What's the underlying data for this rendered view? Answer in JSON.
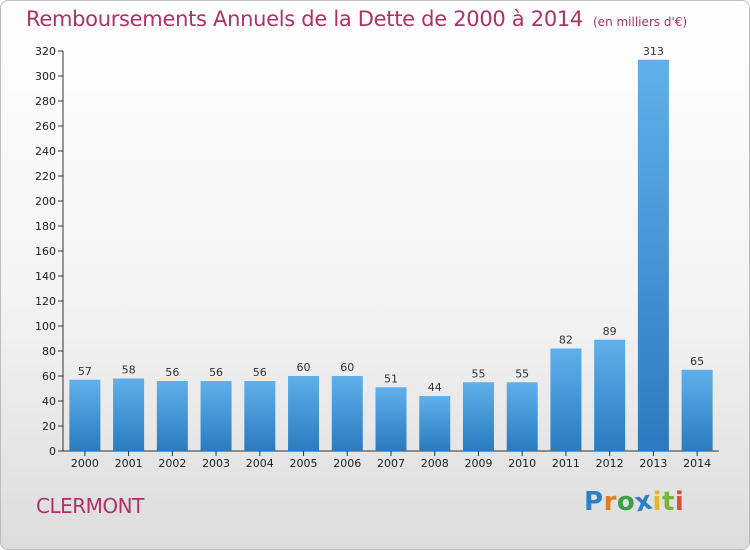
{
  "chart_data": {
    "type": "bar",
    "title": "Remboursements Annuels de la Dette de 2000 à 2014",
    "subtitle": "(en milliers d'€)",
    "xlabel": "",
    "ylabel": "",
    "categories": [
      "2000",
      "2001",
      "2002",
      "2003",
      "2004",
      "2005",
      "2006",
      "2007",
      "2008",
      "2009",
      "2010",
      "2011",
      "2012",
      "2013",
      "2014"
    ],
    "values": [
      57,
      58,
      56,
      56,
      56,
      60,
      60,
      51,
      44,
      55,
      55,
      82,
      89,
      313,
      65
    ],
    "ylim": [
      0,
      320
    ],
    "yticks": [
      0,
      20,
      40,
      60,
      80,
      100,
      120,
      140,
      160,
      180,
      200,
      220,
      240,
      260,
      280,
      300,
      320
    ],
    "grid": false,
    "legend": "none"
  },
  "colors": {
    "bar_top": "#5fb0ea",
    "bar_bottom": "#2a7bbf",
    "title": "#b0306a"
  },
  "footer": {
    "commune": "CLERMONT",
    "logo": {
      "text": "Proxiti",
      "letters": [
        "P",
        "r",
        "o",
        "x",
        "i",
        "t",
        "i"
      ],
      "colors": [
        "#2f7fc8",
        "#e57b1f",
        "#36a245",
        "#2f7fc8",
        "#e2b72b",
        "#7db43a",
        "#d4503a"
      ]
    }
  }
}
